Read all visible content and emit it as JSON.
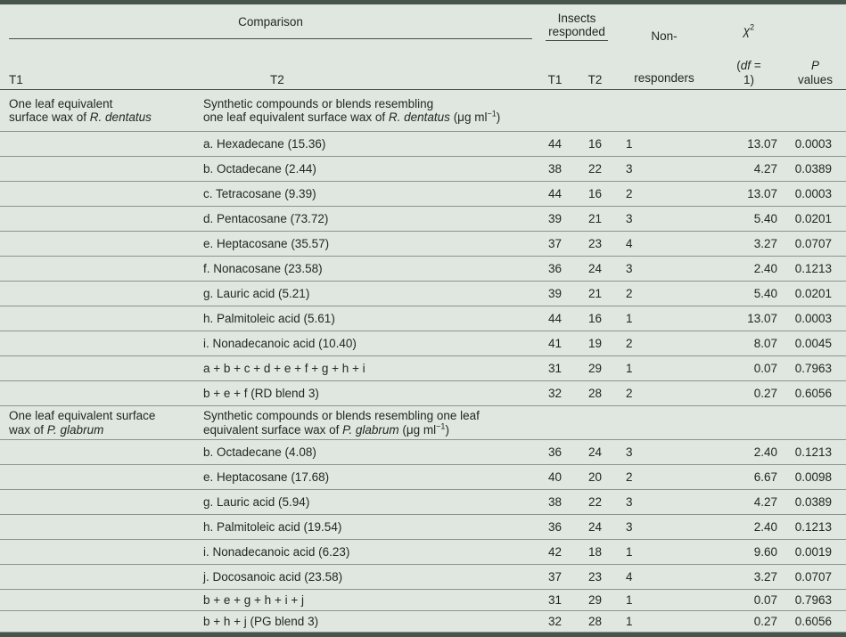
{
  "colors": {
    "background": "#dfe7e0",
    "bar": "#47544c",
    "rule_dark": "#3f4f45",
    "rule_light": "#87978d",
    "text": "#22282f"
  },
  "table": {
    "header": {
      "comparison": "Comparison",
      "insects_responded": "Insects responded",
      "t1": "T1",
      "t2": "T2",
      "resp_t1": "T1",
      "resp_t2": "T2",
      "non_line1": "Non-",
      "non_line2": "responders",
      "chi": "χ",
      "chi_exp": "2",
      "df_open": "(",
      "df": "df",
      "df_eq": " =",
      "df_line2": "1)",
      "p": "P",
      "p_line2": "values"
    },
    "sections": [
      {
        "t1_line1": "One leaf equivalent",
        "t1_line2_pre": "surface wax of ",
        "t1_italic": "R. dentatus",
        "t2_line1": "Synthetic compounds or blends resembling",
        "t2_line2_pre": "one leaf equivalent surface wax of ",
        "t2_italic": "R. dentatus",
        "unit_pre": " (μg ml",
        "unit_sup": "−1",
        "unit_post": ")",
        "rows": [
          {
            "t2": "a. Hexadecane (15.36)",
            "r1": "44",
            "r2": "16",
            "non": "1",
            "chi": "13.07",
            "p": "0.0003"
          },
          {
            "t2": "b. Octadecane (2.44)",
            "r1": "38",
            "r2": "22",
            "non": "3",
            "chi": "4.27",
            "p": "0.0389"
          },
          {
            "t2": "c. Tetracosane (9.39)",
            "r1": "44",
            "r2": "16",
            "non": "2",
            "chi": "13.07",
            "p": "0.0003"
          },
          {
            "t2": "d. Pentacosane (73.72)",
            "r1": "39",
            "r2": "21",
            "non": "3",
            "chi": "5.40",
            "p": "0.0201"
          },
          {
            "t2": "e. Heptacosane (35.57)",
            "r1": "37",
            "r2": "23",
            "non": "4",
            "chi": "3.27",
            "p": "0.0707"
          },
          {
            "t2": "f. Nonacosane (23.58)",
            "r1": "36",
            "r2": "24",
            "non": "3",
            "chi": "2.40",
            "p": "0.1213"
          },
          {
            "t2": "g. Lauric acid (5.21)",
            "r1": "39",
            "r2": "21",
            "non": "2",
            "chi": "5.40",
            "p": "0.0201"
          },
          {
            "t2": "h. Palmitoleic acid (5.61)",
            "r1": "44",
            "r2": "16",
            "non": "1",
            "chi": "13.07",
            "p": "0.0003"
          },
          {
            "t2": "i. Nonadecanoic acid (10.40)",
            "r1": "41",
            "r2": "19",
            "non": "2",
            "chi": "8.07",
            "p": "0.0045"
          },
          {
            "t2": "a + b + c + d + e + f + g + h + i",
            "r1": "31",
            "r2": "29",
            "non": "1",
            "chi": "0.07",
            "p": "0.7963"
          },
          {
            "t2": "b + e + f (RD blend 3)",
            "r1": "32",
            "r2": "28",
            "non": "2",
            "chi": "0.27",
            "p": "0.6056"
          }
        ]
      },
      {
        "t1_line1": "One leaf equivalent surface",
        "t1_line2_pre": "wax of ",
        "t1_italic": "P. glabrum",
        "t2_line1": "Synthetic compounds or blends resembling one leaf",
        "t2_line2_pre": "equivalent surface wax of ",
        "t2_italic": "P. glabrum",
        "unit_pre": " (μg ml",
        "unit_sup": "−1",
        "unit_post": ")",
        "rows": [
          {
            "t2": "b. Octadecane (4.08)",
            "r1": "36",
            "r2": "24",
            "non": "3",
            "chi": "2.40",
            "p": "0.1213"
          },
          {
            "t2": "e. Heptacosane (17.68)",
            "r1": "40",
            "r2": "20",
            "non": "2",
            "chi": "6.67",
            "p": "0.0098"
          },
          {
            "t2": "g. Lauric acid (5.94)",
            "r1": "38",
            "r2": "22",
            "non": "3",
            "chi": "4.27",
            "p": "0.0389"
          },
          {
            "t2": "h. Palmitoleic acid (19.54)",
            "r1": "36",
            "r2": "24",
            "non": "3",
            "chi": "2.40",
            "p": "0.1213"
          },
          {
            "t2": "i. Nonadecanoic acid (6.23)",
            "r1": "42",
            "r2": "18",
            "non": "1",
            "chi": "9.60",
            "p": "0.0019"
          },
          {
            "t2": "j. Docosanoic acid (23.58)",
            "r1": "37",
            "r2": "23",
            "non": "4",
            "chi": "3.27",
            "p": "0.0707"
          },
          {
            "t2": "b + e + g + h + i + j",
            "r1": "31",
            "r2": "29",
            "non": "1",
            "chi": "0.07",
            "p": "0.7963"
          },
          {
            "t2": "b + h + j (PG blend 3)",
            "r1": "32",
            "r2": "28",
            "non": "1",
            "chi": "0.27",
            "p": "0.6056"
          }
        ]
      }
    ]
  }
}
